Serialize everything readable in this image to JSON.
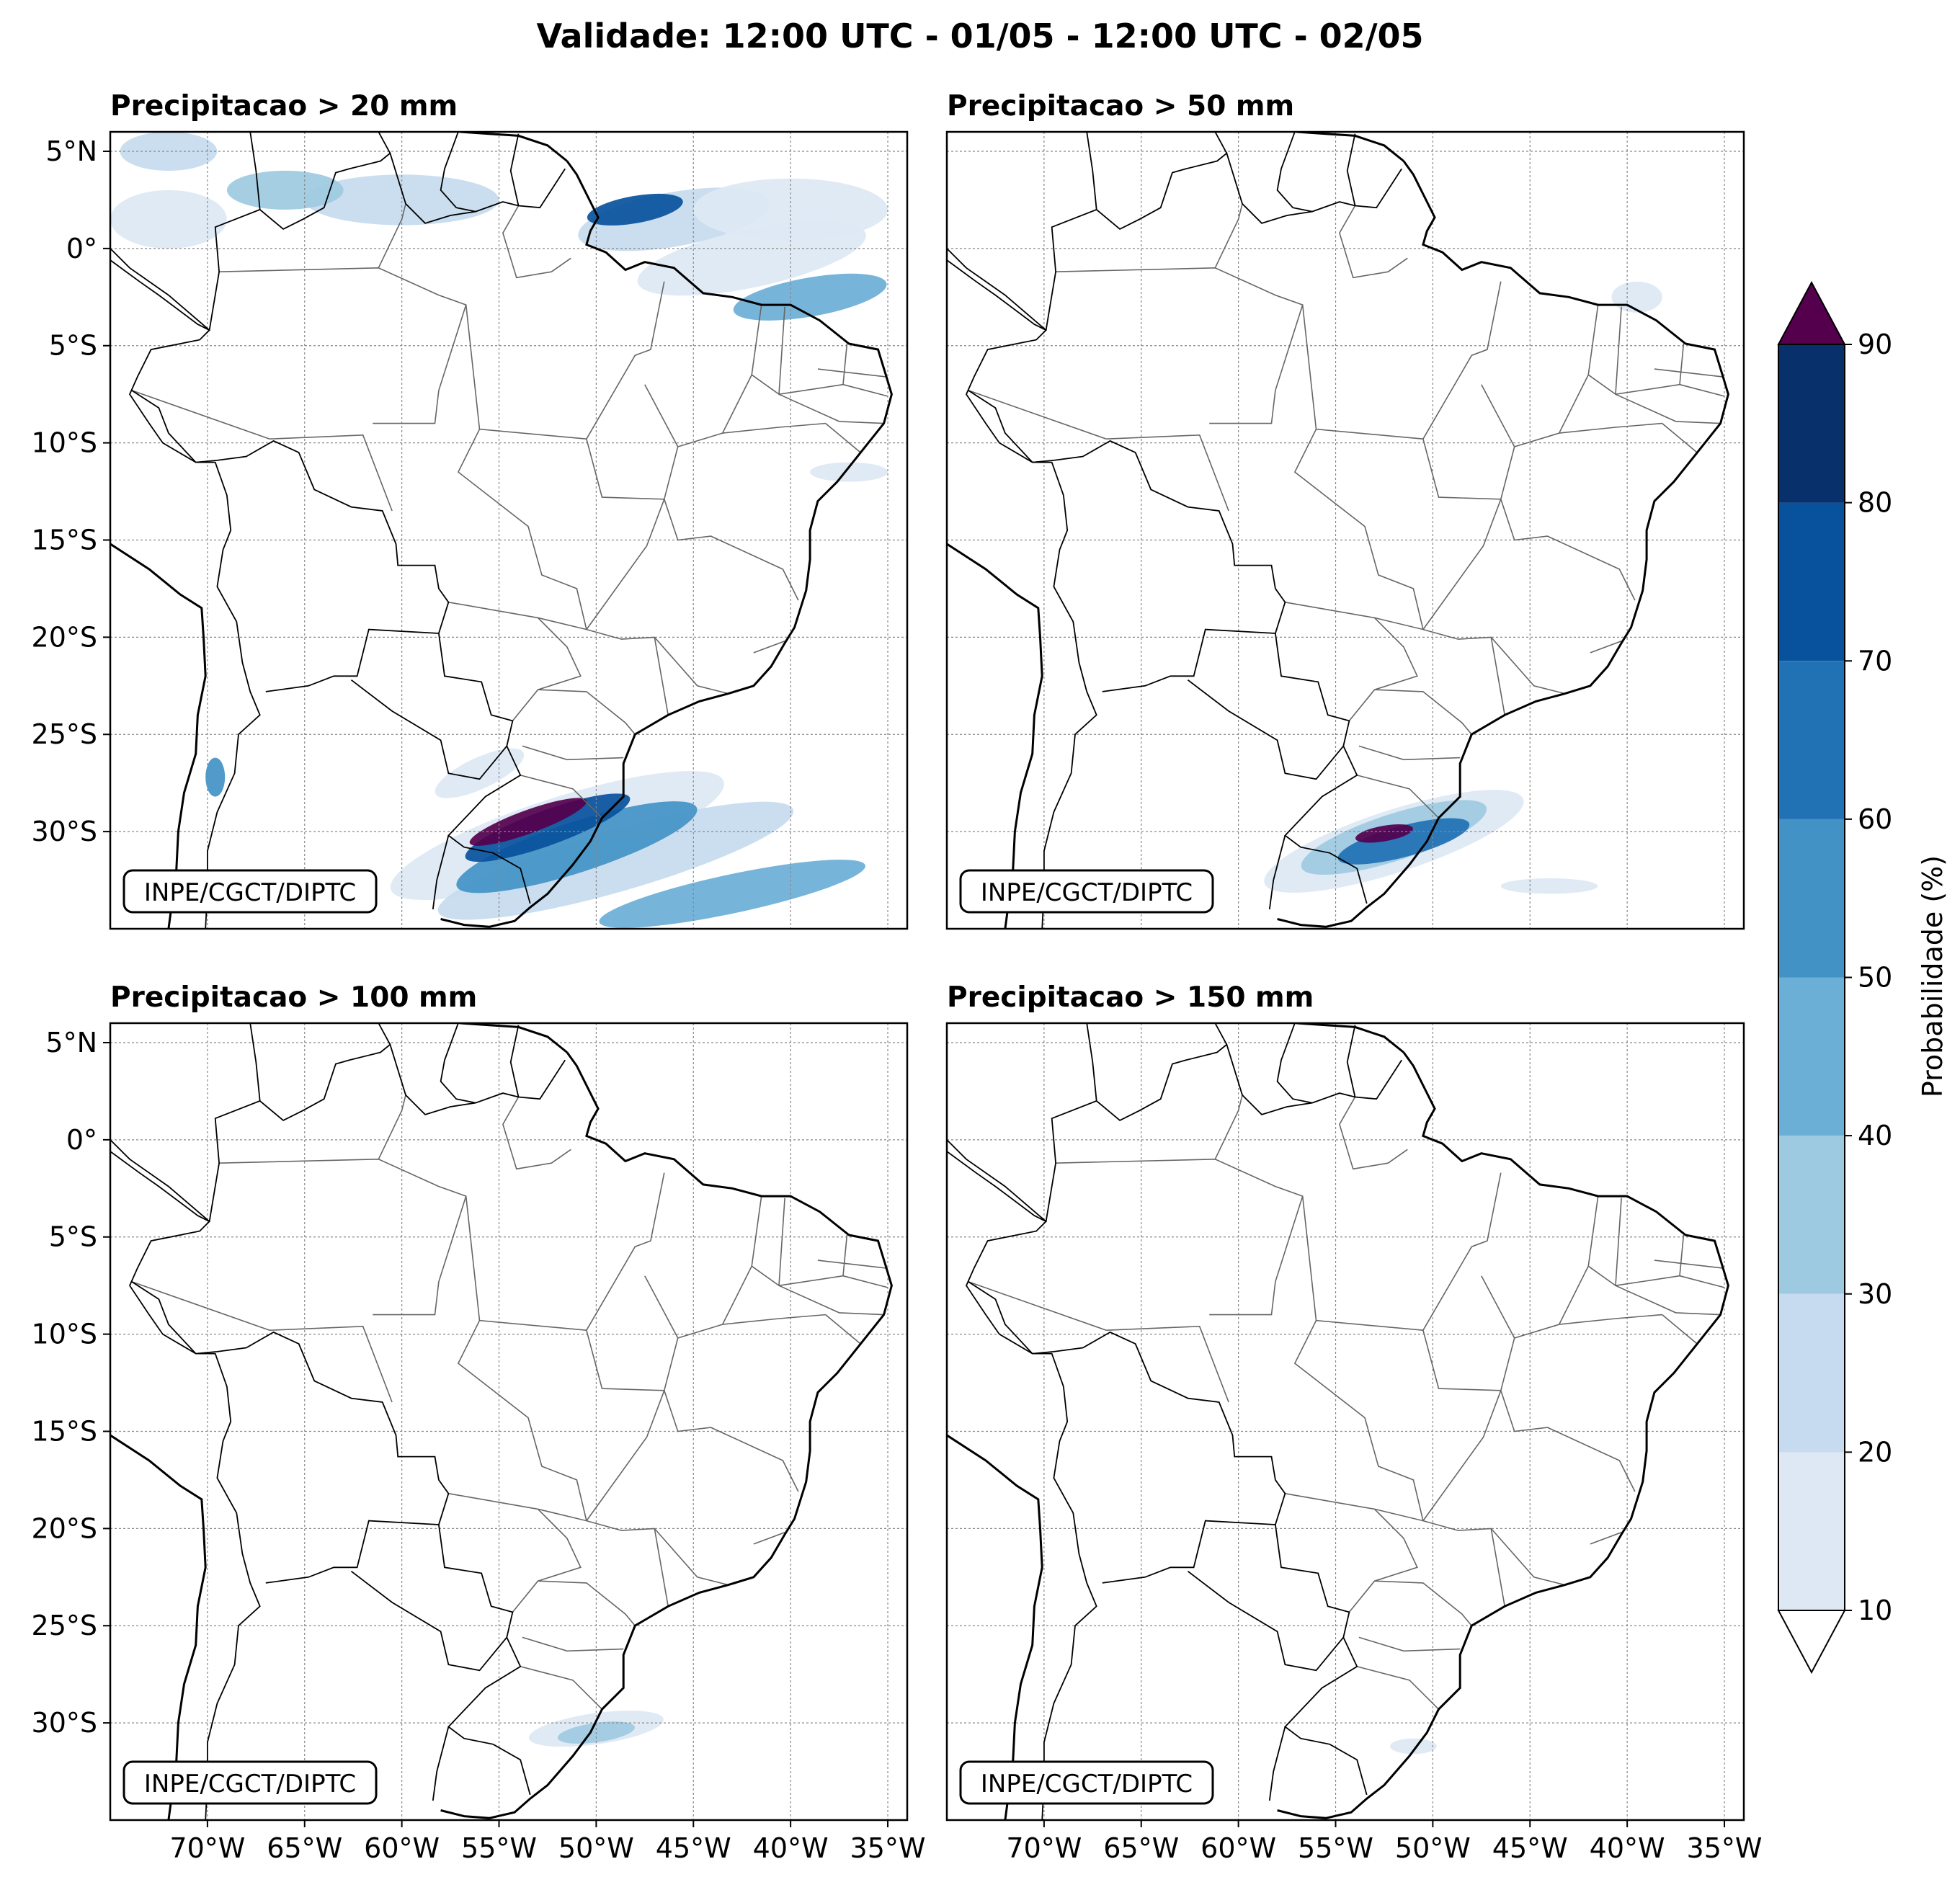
{
  "figure": {
    "title": "Validade: 12:00 UTC - 01/05 - 12:00 UTC - 02/05",
    "credit": "INPE/CGCT/DIPTC"
  },
  "colors": {
    "levels": [
      "#dde8f4",
      "#c6dbef",
      "#9ecae1",
      "#6baed6",
      "#4292c6",
      "#2171b5",
      "#08519c",
      "#08306b"
    ],
    "over": "#54004d",
    "coast": "#000000",
    "states": "#666666",
    "grid": "#888888"
  },
  "map": {
    "lon_range": [
      -75,
      -34
    ],
    "lat_range": [
      -35,
      6
    ],
    "x_ticks": [
      {
        "value": -70,
        "label": "70°W"
      },
      {
        "value": -65,
        "label": "65°W"
      },
      {
        "value": -60,
        "label": "60°W"
      },
      {
        "value": -55,
        "label": "55°W"
      },
      {
        "value": -50,
        "label": "50°W"
      },
      {
        "value": -45,
        "label": "45°W"
      },
      {
        "value": -40,
        "label": "40°W"
      },
      {
        "value": -35,
        "label": "35°W"
      }
    ],
    "y_ticks": [
      {
        "value": 5,
        "label": "5°N"
      },
      {
        "value": 0,
        "label": "0°"
      },
      {
        "value": -5,
        "label": "5°S"
      },
      {
        "value": -10,
        "label": "10°S"
      },
      {
        "value": -15,
        "label": "15°S"
      },
      {
        "value": -20,
        "label": "20°S"
      },
      {
        "value": -25,
        "label": "25°S"
      },
      {
        "value": -30,
        "label": "30°S"
      }
    ]
  },
  "panels": [
    {
      "title": "Precipitacao > 20 mm",
      "blobs": [
        {
          "lon": -52,
          "lat": -30.2,
          "rx": 9,
          "ry": 1.9,
          "rot": -18,
          "level": 0
        },
        {
          "lon": -49,
          "lat": -31.5,
          "rx": 9.5,
          "ry": 1.6,
          "rot": -16,
          "level": 1
        },
        {
          "lon": -43,
          "lat": -33.2,
          "rx": 7,
          "ry": 1.0,
          "rot": -12,
          "level": 3
        },
        {
          "lon": -51,
          "lat": -30.8,
          "rx": 6.5,
          "ry": 1.3,
          "rot": -18,
          "level": 4
        },
        {
          "lon": -52.5,
          "lat": -29.8,
          "rx": 4.5,
          "ry": 0.9,
          "rot": -20,
          "level": 6
        },
        {
          "lon": -53.5,
          "lat": -29.5,
          "rx": 3.2,
          "ry": 0.6,
          "rot": -20,
          "level": 8
        },
        {
          "lon": -56,
          "lat": -27,
          "rx": 2.5,
          "ry": 0.8,
          "rot": -25,
          "level": 0
        },
        {
          "lon": -69.6,
          "lat": -27.2,
          "rx": 0.5,
          "ry": 1.0,
          "rot": 0,
          "level": 4
        },
        {
          "lon": -46,
          "lat": 1.5,
          "rx": 5,
          "ry": 1.4,
          "rot": -10,
          "level": 1
        },
        {
          "lon": -48,
          "lat": 2,
          "rx": 2.5,
          "ry": 0.7,
          "rot": -10,
          "level": 6
        },
        {
          "lon": -42,
          "lat": -0.5,
          "rx": 6,
          "ry": 1.5,
          "rot": -12,
          "level": 0
        },
        {
          "lon": -39,
          "lat": -2.5,
          "rx": 4,
          "ry": 1.0,
          "rot": -10,
          "level": 3
        },
        {
          "lon": -40,
          "lat": 2,
          "rx": 5,
          "ry": 1.6,
          "rot": 0,
          "level": 0
        },
        {
          "lon": -60,
          "lat": 2.5,
          "rx": 5,
          "ry": 1.3,
          "rot": 0,
          "level": 1
        },
        {
          "lon": -66,
          "lat": 3,
          "rx": 3,
          "ry": 1,
          "rot": 0,
          "level": 2
        },
        {
          "lon": -72,
          "lat": 1.5,
          "rx": 3,
          "ry": 1.5,
          "rot": 0,
          "level": 0
        },
        {
          "lon": -72,
          "lat": 5,
          "rx": 2.5,
          "ry": 1,
          "rot": 0,
          "level": 1
        },
        {
          "lon": -37,
          "lat": -11.5,
          "rx": 2,
          "ry": 0.5,
          "rot": 0,
          "level": 0
        }
      ]
    },
    {
      "title": "Precipitacao > 50 mm",
      "blobs": [
        {
          "lon": -52,
          "lat": -30.5,
          "rx": 7,
          "ry": 1.6,
          "rot": -18,
          "level": 0
        },
        {
          "lon": -52,
          "lat": -30.3,
          "rx": 5,
          "ry": 1.2,
          "rot": -18,
          "level": 2
        },
        {
          "lon": -51.5,
          "lat": -30.5,
          "rx": 3.5,
          "ry": 0.8,
          "rot": -15,
          "level": 5
        },
        {
          "lon": -52.5,
          "lat": -30.1,
          "rx": 1.5,
          "ry": 0.4,
          "rot": -10,
          "level": 8
        },
        {
          "lon": -44,
          "lat": -32.8,
          "rx": 2.5,
          "ry": 0.4,
          "rot": 0,
          "level": 0
        },
        {
          "lon": -39.5,
          "lat": -2.5,
          "rx": 1.3,
          "ry": 0.8,
          "rot": 0,
          "level": 0
        }
      ]
    },
    {
      "title": "Precipitacao > 100 mm",
      "blobs": [
        {
          "lon": -50,
          "lat": -30.3,
          "rx": 3.5,
          "ry": 0.8,
          "rot": -8,
          "level": 0
        },
        {
          "lon": -50,
          "lat": -30.5,
          "rx": 2,
          "ry": 0.5,
          "rot": -8,
          "level": 2
        }
      ]
    },
    {
      "title": "Precipitacao > 150 mm",
      "blobs": [
        {
          "lon": -51,
          "lat": -31.2,
          "rx": 1.2,
          "ry": 0.4,
          "rot": 0,
          "level": 0
        }
      ]
    }
  ],
  "colorbar": {
    "label": "Probabilidade (%)",
    "tick_labels": [
      "10",
      "20",
      "30",
      "40",
      "50",
      "60",
      "70",
      "80",
      "90"
    ]
  }
}
